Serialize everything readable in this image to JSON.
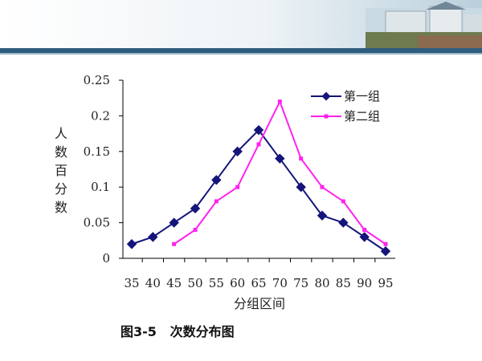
{
  "caption": "图3-5   次数分布图",
  "colors": {
    "series1": "#14147a",
    "series2": "#ff22ee",
    "header_band": "#2f5d7f"
  },
  "chart_data": {
    "type": "line",
    "title": "",
    "xlabel": "分组区间",
    "ylabel": "人数百分数",
    "x": [
      35,
      40,
      45,
      50,
      55,
      60,
      65,
      70,
      75,
      80,
      85,
      90,
      95
    ],
    "xlim": [
      35,
      95
    ],
    "ylim": [
      0,
      0.25
    ],
    "yticks": [
      0,
      0.05,
      0.1,
      0.15,
      0.2,
      0.25
    ],
    "ytick_labels": [
      "0",
      "0.05",
      "0.1",
      "0.15",
      "0.2",
      "0.25"
    ],
    "grid": false,
    "legend_position": "top-right",
    "series": [
      {
        "name": "第一组",
        "marker": "diamond",
        "values": [
          0.02,
          0.03,
          0.05,
          0.07,
          0.11,
          0.15,
          0.18,
          0.14,
          0.1,
          0.06,
          0.05,
          0.03,
          0.01
        ]
      },
      {
        "name": "第二组",
        "marker": "square",
        "values": [
          null,
          null,
          0.02,
          0.04,
          0.08,
          0.1,
          0.16,
          0.22,
          0.14,
          0.1,
          0.08,
          0.04,
          0.02
        ]
      }
    ]
  }
}
